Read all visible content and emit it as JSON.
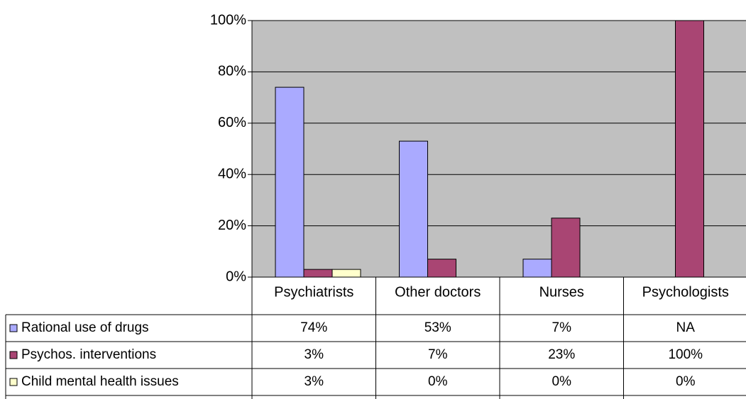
{
  "chart_data": {
    "type": "bar",
    "categories": [
      "Psychiatrists",
      "Other doctors",
      "Nurses",
      "Psychologists"
    ],
    "series": [
      {
        "name": "Rational use of drugs",
        "color": "#aaaaff",
        "values": [
          74,
          53,
          7,
          null
        ],
        "value_labels": [
          "74%",
          "53%",
          "7%",
          "NA"
        ]
      },
      {
        "name": "Psychos. interventions",
        "color": "#a94573",
        "values": [
          3,
          7,
          23,
          100
        ],
        "value_labels": [
          "3%",
          "7%",
          "23%",
          "100%"
        ]
      },
      {
        "name": "Child mental health issues",
        "color": "#ffffcc",
        "values": [
          3,
          0,
          0,
          0
        ],
        "value_labels": [
          "3%",
          "0%",
          "0%",
          "0%"
        ]
      }
    ],
    "ylim": [
      0,
      100
    ],
    "yticks": [
      {
        "value": 0,
        "label": "0%"
      },
      {
        "value": 20,
        "label": "20%"
      },
      {
        "value": 40,
        "label": "40%"
      },
      {
        "value": 60,
        "label": "60%"
      },
      {
        "value": 80,
        "label": "80%"
      },
      {
        "value": 100,
        "label": "100%"
      }
    ],
    "grid": true
  }
}
